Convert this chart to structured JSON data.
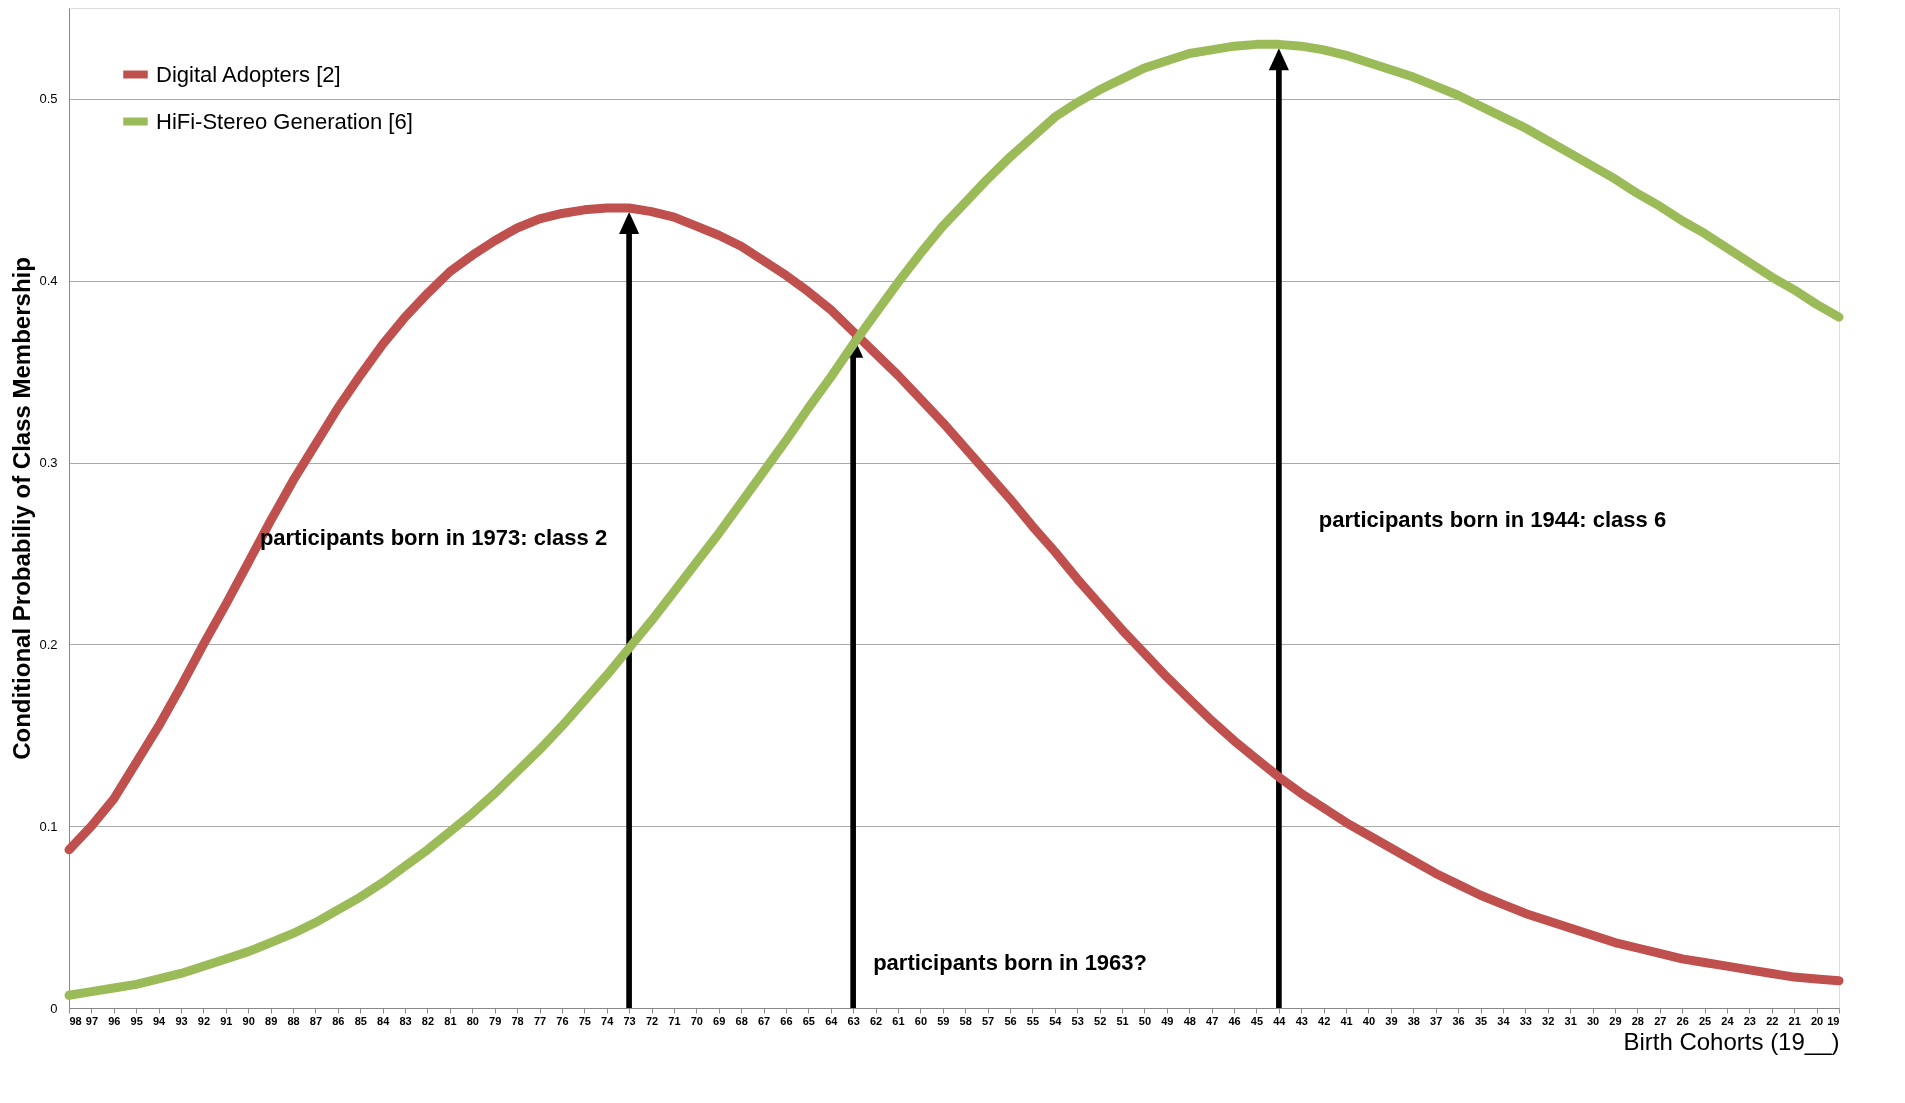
{
  "chart_data": {
    "type": "line",
    "xlabel": "Birth Cohorts (19__)",
    "ylabel": "Conditional Probabiliy of Class Membership",
    "categories": [
      "98",
      "97",
      "96",
      "95",
      "94",
      "93",
      "92",
      "91",
      "90",
      "89",
      "88",
      "87",
      "86",
      "85",
      "84",
      "83",
      "82",
      "81",
      "80",
      "79",
      "78",
      "77",
      "76",
      "75",
      "74",
      "73",
      "72",
      "71",
      "70",
      "69",
      "68",
      "67",
      "66",
      "65",
      "64",
      "63",
      "62",
      "61",
      "60",
      "59",
      "58",
      "57",
      "56",
      "55",
      "54",
      "53",
      "52",
      "51",
      "50",
      "49",
      "48",
      "47",
      "46",
      "45",
      "44",
      "43",
      "42",
      "41",
      "40",
      "39",
      "38",
      "37",
      "36",
      "35",
      "34",
      "33",
      "32",
      "31",
      "30",
      "29",
      "28",
      "27",
      "26",
      "25",
      "24",
      "23",
      "22",
      "21",
      "20",
      "19"
    ],
    "series": [
      {
        "name": "Digital Adopters [2]",
        "color": "#c0504d",
        "values": [
          0.087,
          0.1,
          0.115,
          0.135,
          0.155,
          0.177,
          0.2,
          0.222,
          0.245,
          0.268,
          0.29,
          0.31,
          0.33,
          0.348,
          0.365,
          0.38,
          0.393,
          0.405,
          0.414,
          0.422,
          0.429,
          0.434,
          0.437,
          0.439,
          0.44,
          0.44,
          0.438,
          0.435,
          0.43,
          0.425,
          0.419,
          0.411,
          0.403,
          0.394,
          0.384,
          0.372,
          0.36,
          0.348,
          0.335,
          0.322,
          0.308,
          0.294,
          0.28,
          0.265,
          0.251,
          0.236,
          0.222,
          0.208,
          0.195,
          0.182,
          0.17,
          0.158,
          0.147,
          0.137,
          0.127,
          0.118,
          0.11,
          0.102,
          0.095,
          0.088,
          0.081,
          0.074,
          0.068,
          0.062,
          0.057,
          0.052,
          0.048,
          0.044,
          0.04,
          0.036,
          0.033,
          0.03,
          0.027,
          0.025,
          0.023,
          0.021,
          0.019,
          0.017,
          0.016,
          0.015
        ]
      },
      {
        "name": "HiFi-Stereo Generation [6]",
        "color": "#9bbb59",
        "values": [
          0.007,
          0.009,
          0.011,
          0.013,
          0.016,
          0.019,
          0.023,
          0.027,
          0.031,
          0.036,
          0.041,
          0.047,
          0.054,
          0.061,
          0.069,
          0.078,
          0.087,
          0.097,
          0.107,
          0.118,
          0.13,
          0.142,
          0.155,
          0.169,
          0.183,
          0.198,
          0.213,
          0.229,
          0.245,
          0.261,
          0.278,
          0.295,
          0.312,
          0.33,
          0.347,
          0.365,
          0.382,
          0.399,
          0.415,
          0.43,
          0.443,
          0.456,
          0.468,
          0.479,
          0.49,
          0.498,
          0.505,
          0.511,
          0.517,
          0.521,
          0.525,
          0.527,
          0.529,
          0.53,
          0.53,
          0.529,
          0.527,
          0.524,
          0.52,
          0.516,
          0.512,
          0.507,
          0.502,
          0.496,
          0.49,
          0.484,
          0.477,
          0.47,
          0.463,
          0.456,
          0.448,
          0.441,
          0.433,
          0.426,
          0.418,
          0.41,
          0.402,
          0.395,
          0.387,
          0.38
        ]
      }
    ],
    "ylim": [
      0,
      0.55
    ],
    "yticks": [
      0,
      0.1,
      0.2,
      0.3,
      0.4,
      0.5
    ],
    "grid": "y",
    "legend": "top left",
    "marker": "none",
    "line_style": "solid",
    "ref_lines": [
      {
        "axis": "x",
        "value": "73",
        "color": "#000000"
      },
      {
        "axis": "x",
        "value": "63",
        "color": "#000000"
      },
      {
        "axis": "x",
        "value": "44",
        "color": "#000000"
      }
    ],
    "annotations": [
      "participants born in 1973: class 2",
      "participants born in 1963?",
      "participants born in 1944: class 6"
    ]
  }
}
